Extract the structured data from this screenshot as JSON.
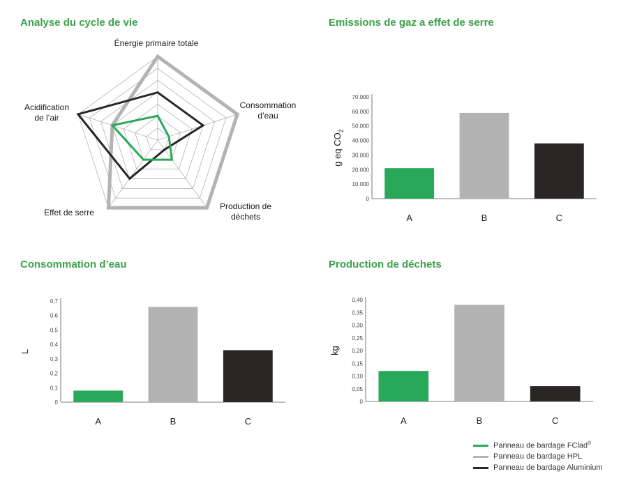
{
  "colors": {
    "green": "#2aa85a",
    "gray": "#b3b3b3",
    "black": "#2a2626",
    "title_green": "#3aa14a"
  },
  "titles": {
    "radar": "Analyse du cycle de vie",
    "ghg": "Emissions de gaz a effet de serre",
    "water": "Consommation d’eau",
    "waste": "Production de déchets"
  },
  "legend": [
    {
      "label": "Panneau de bardage FClad",
      "sup": "®",
      "color": "#2aa85a"
    },
    {
      "label": "Panneau de bardage HPL",
      "sup": "",
      "color": "#b3b3b3"
    },
    {
      "label": "Panneau de bardage Aluminium",
      "sup": "",
      "color": "#2a2626"
    }
  ],
  "chart_data": [
    {
      "type": "radar",
      "title": "Analyse du cycle de vie",
      "axes": [
        "Énergie primaire totale",
        "Consommation d’eau",
        "Production de déchets",
        "Effet de serre",
        "Acidification de l’air"
      ],
      "axes_lines": [
        [
          "Énergie primaire totale"
        ],
        [
          "Consommation",
          "d’eau"
        ],
        [
          "Production de",
          "déchets"
        ],
        [
          "Effet de serre"
        ],
        [
          "Acidification",
          "de l’air"
        ]
      ],
      "rings": 7,
      "series": [
        {
          "name": "Panneau de bardage FClad®",
          "color": "#2aa85a",
          "values": [
            0.29,
            0.14,
            0.29,
            0.29,
            0.57
          ]
        },
        {
          "name": "Panneau de bardage HPL",
          "color": "#b3b3b3",
          "values": [
            1.0,
            1.0,
            1.0,
            1.0,
            0.57
          ]
        },
        {
          "name": "Panneau de bardage Aluminium",
          "color": "#2a2626",
          "values": [
            0.57,
            0.57,
            0.14,
            0.57,
            1.0
          ]
        }
      ]
    },
    {
      "type": "bar",
      "title": "Emissions de gaz a effet de serre",
      "categories": [
        "A",
        "B",
        "C"
      ],
      "values": [
        21000,
        59000,
        38000
      ],
      "colors": [
        "#2aa85a",
        "#b3b3b3",
        "#2a2626"
      ],
      "ylabel": "g eq CO2",
      "ylabel_main": "g eq CO",
      "ylabel_sub": "2",
      "ylim": [
        0,
        70000
      ],
      "yticks": [
        0,
        10000,
        20000,
        30000,
        40000,
        50000,
        60000,
        70000
      ],
      "ytick_labels": [
        "0",
        "10.000",
        "20.000",
        "30.000",
        "40.000",
        "50.000",
        "60.000",
        "70.000"
      ]
    },
    {
      "type": "bar",
      "title": "Consommation d’eau",
      "categories": [
        "A",
        "B",
        "C"
      ],
      "values": [
        0.08,
        0.66,
        0.36
      ],
      "colors": [
        "#2aa85a",
        "#b3b3b3",
        "#2a2626"
      ],
      "ylabel": "L",
      "ylabel_main": "L",
      "ylabel_sub": "",
      "ylim": [
        0,
        0.7
      ],
      "yticks": [
        0,
        0.1,
        0.2,
        0.3,
        0.4,
        0.5,
        0.6,
        0.7
      ],
      "ytick_labels": [
        "0",
        "0,1",
        "0,2",
        "0,3",
        "0,4",
        "0,5",
        "0,6",
        "0,7"
      ]
    },
    {
      "type": "bar",
      "title": "Production de déchets",
      "categories": [
        "A",
        "B",
        "C"
      ],
      "values": [
        0.12,
        0.38,
        0.06
      ],
      "colors": [
        "#2aa85a",
        "#b3b3b3",
        "#2a2626"
      ],
      "ylabel": "kg",
      "ylabel_main": "kg",
      "ylabel_sub": "",
      "ylim": [
        0,
        0.4
      ],
      "yticks": [
        0,
        0.05,
        0.1,
        0.15,
        0.2,
        0.25,
        0.3,
        0.35,
        0.4
      ],
      "ytick_labels": [
        "0",
        "0,05",
        "0,10",
        "0,15",
        "0,20",
        "0,25",
        "0,30",
        "0,35",
        "0,40"
      ]
    }
  ]
}
